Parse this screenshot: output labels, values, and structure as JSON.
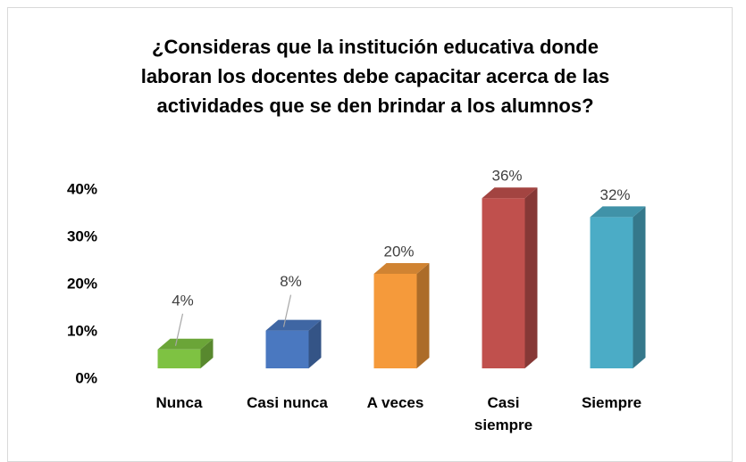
{
  "chart_data": {
    "type": "bar3d",
    "title": [
      "¿Consideras que la institución educativa donde",
      "laboran los docentes debe capacitar acerca de las",
      "actividades que se den brindar a los alumnos?"
    ],
    "categories": [
      "Nunca",
      "Casi nunca",
      "A veces",
      "Casi siempre",
      "Siempre"
    ],
    "values": [
      4,
      8,
      20,
      36,
      32
    ],
    "value_labels": [
      "4%",
      "8%",
      "20%",
      "36%",
      "32%"
    ],
    "colors": [
      "#7ec242",
      "#4a78c0",
      "#f59a3b",
      "#c0504d",
      "#4bacc6"
    ],
    "ylim": [
      0,
      40
    ],
    "yticks": [
      {
        "value": 0,
        "label": "0%"
      },
      {
        "value": 10,
        "label": "10%"
      },
      {
        "value": 20,
        "label": "20%"
      },
      {
        "value": 30,
        "label": "30%"
      },
      {
        "value": 40,
        "label": "40%"
      }
    ]
  }
}
